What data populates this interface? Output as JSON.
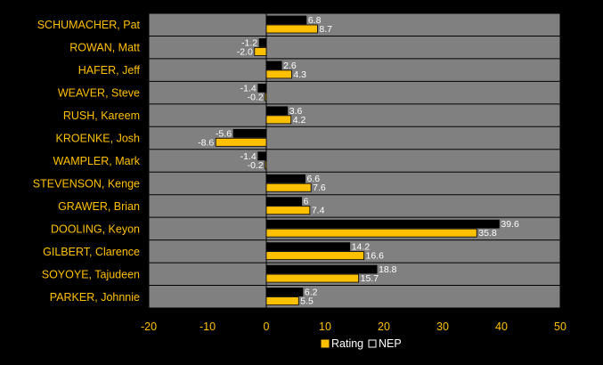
{
  "chart_data": {
    "type": "bar",
    "orientation": "horizontal",
    "title": "",
    "xlabel": "",
    "ylabel": "",
    "categories": [
      "SCHUMACHER, Pat",
      "ROWAN, Matt",
      "HAFER, Jeff",
      "WEAVER, Steve",
      "RUSH, Kareem",
      "KROENKE, Josh",
      "WAMPLER, Mark",
      "STEVENSON, Kenge",
      "GRAWER, Brian",
      "DOOLING, Keyon",
      "GILBERT, Clarence",
      "SOYOYE, Tajudeen",
      "PARKER, Johnnie"
    ],
    "series": [
      {
        "name": "NEP",
        "color": "#000000",
        "values": [
          6.8,
          -1.2,
          2.6,
          -1.4,
          3.6,
          -5.6,
          -1.4,
          6.6,
          6,
          39.6,
          14.2,
          18.8,
          6.2
        ],
        "labels": [
          "6.8",
          "-1.2",
          "2.6",
          "-1.4",
          "3.6",
          "-5.6",
          "-1.4",
          "6.6",
          "6",
          "39.6",
          "14.2",
          "18.8",
          "6.2"
        ]
      },
      {
        "name": "Rating",
        "color": "#ffc000",
        "values": [
          8.7,
          -2.0,
          4.3,
          -0.2,
          4.2,
          -8.6,
          -0.2,
          7.6,
          7.4,
          35.8,
          16.6,
          15.7,
          5.5
        ],
        "labels": [
          "8.7",
          "-2.0",
          "4.3",
          "-0.2",
          "4.2",
          "-8.6",
          "-0.2",
          "7.6",
          "7.4",
          "35.8",
          "16.6",
          "15.7",
          "5.5"
        ]
      }
    ],
    "xlim": [
      -20,
      50
    ],
    "xticks": [
      -20,
      -10,
      0,
      10,
      20,
      30,
      40,
      50
    ],
    "xtick_labels": [
      "-20",
      "-10",
      "0",
      "10",
      "20",
      "30",
      "40",
      "50"
    ],
    "grid": true,
    "legend": {
      "position": "bottom",
      "entries": [
        {
          "name": "Rating",
          "color": "#ffc000"
        },
        {
          "name": "NEP",
          "color": "#000000"
        }
      ]
    },
    "colors": {
      "background": "#000000",
      "plot_area": "#808080",
      "label_text": "#ffc000",
      "value_text": "#ffffff"
    }
  }
}
